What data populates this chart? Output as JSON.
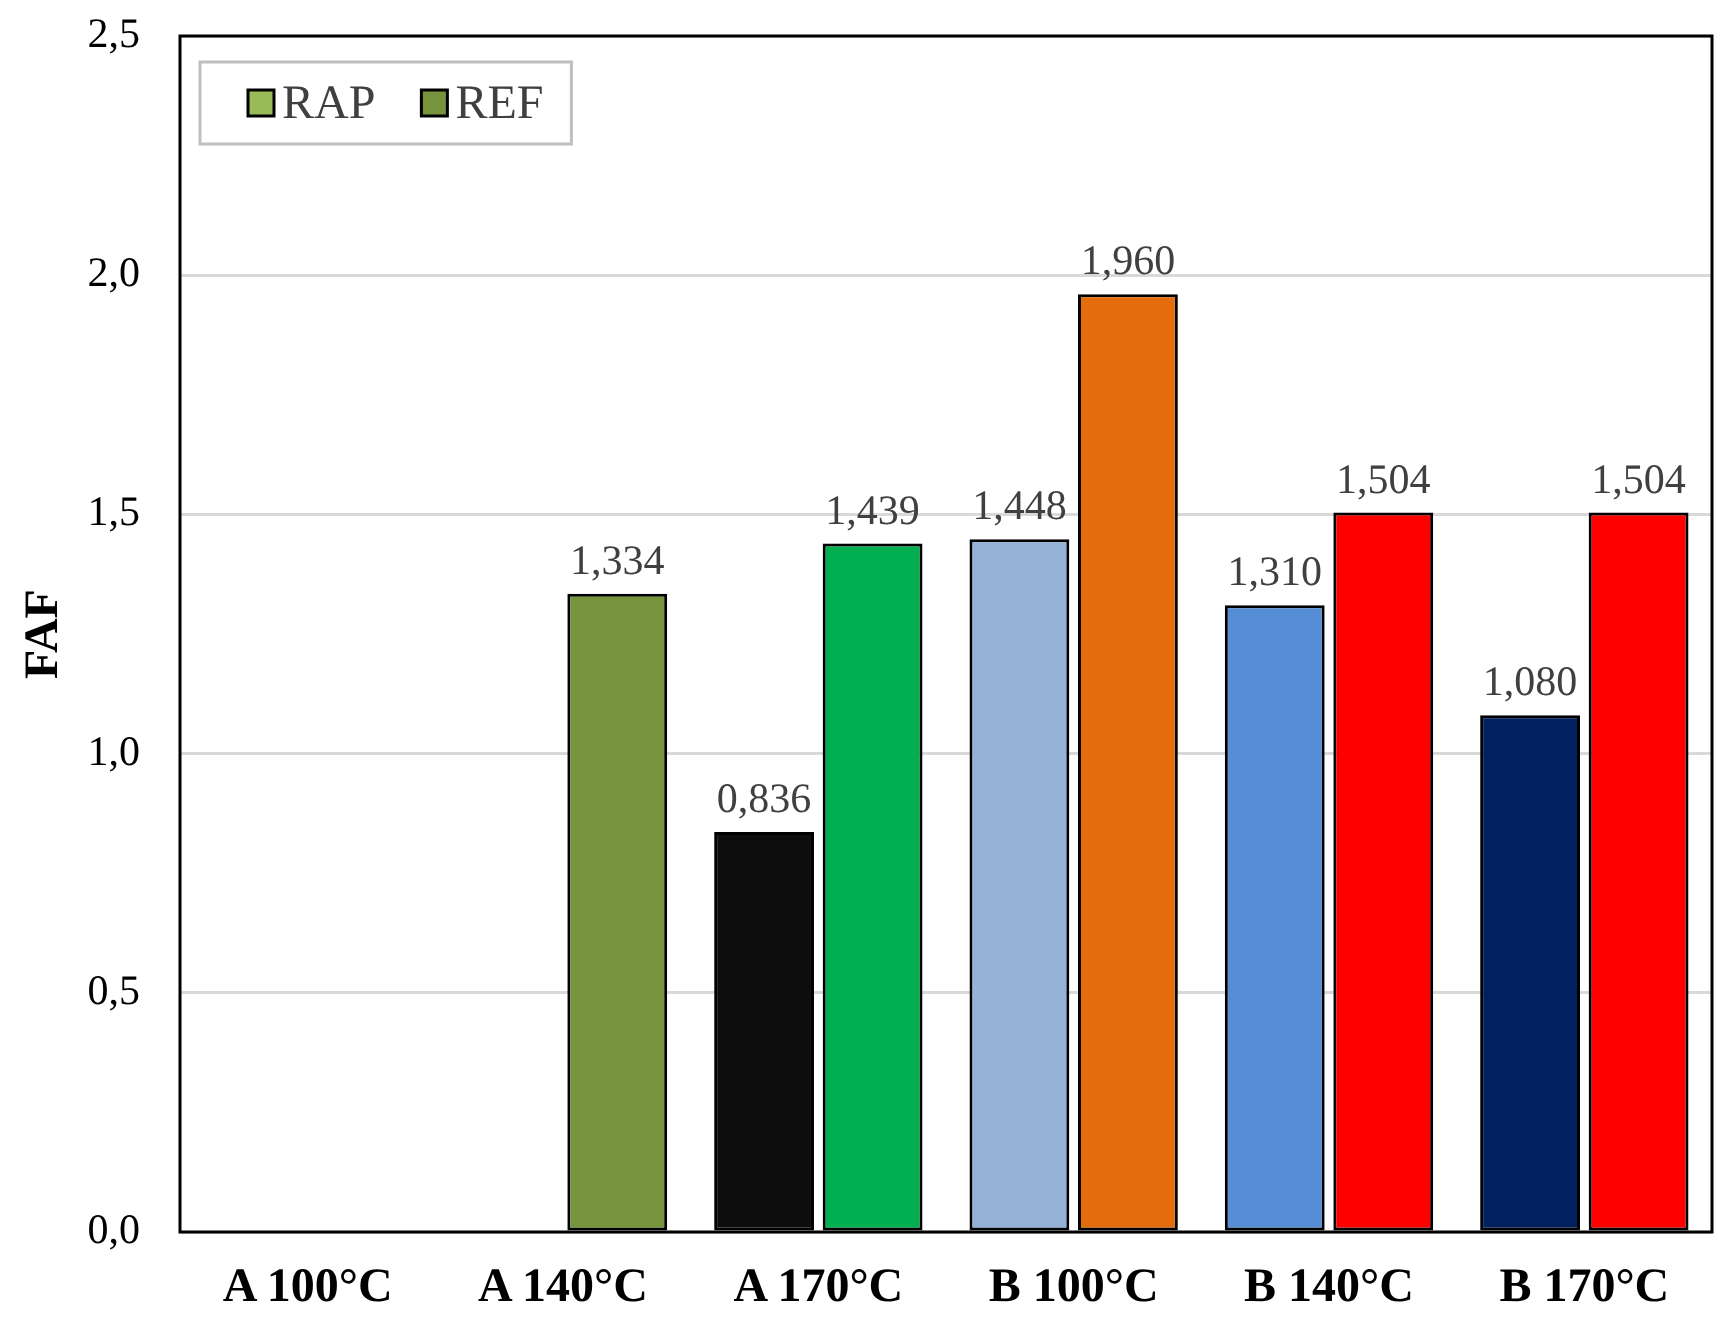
{
  "chart_data": {
    "type": "bar",
    "ylabel": "FAF",
    "categories": [
      "A 100°C",
      "A 140°C",
      "A 170°C",
      "B 100°C",
      "B 140°C",
      "B 170°C"
    ],
    "series": [
      {
        "name": "RAP",
        "color": "#9bbb59",
        "colors": [
          null,
          null,
          "#0d0d0d",
          "#95b3d7",
          "#558ed5",
          "#002060"
        ],
        "values": [
          null,
          null,
          0.836,
          1.448,
          1.31,
          1.08
        ],
        "value_labels": [
          null,
          null,
          "0,836",
          "1,448",
          "1,310",
          "1,080"
        ]
      },
      {
        "name": "REF",
        "color": "#77933c",
        "colors": [
          null,
          "#77933c",
          "#00b050",
          "#e46c0a",
          "#ff0000",
          "#ff0000"
        ],
        "values": [
          null,
          1.334,
          1.439,
          1.96,
          1.504,
          1.504
        ],
        "value_labels": [
          null,
          "1,334",
          "1,439",
          "1,960",
          "1,504",
          "1,504"
        ]
      }
    ],
    "ylim": [
      0,
      2.5
    ],
    "yticks": [
      {
        "value": 0,
        "label": "0,0"
      },
      {
        "value": 0.5,
        "label": "0,5"
      },
      {
        "value": 1,
        "label": "1,0"
      },
      {
        "value": 1.5,
        "label": "1,5"
      },
      {
        "value": 2,
        "label": "2,0"
      },
      {
        "value": 2.5,
        "label": "2,5"
      }
    ],
    "grid": "y",
    "legend": "top left"
  }
}
